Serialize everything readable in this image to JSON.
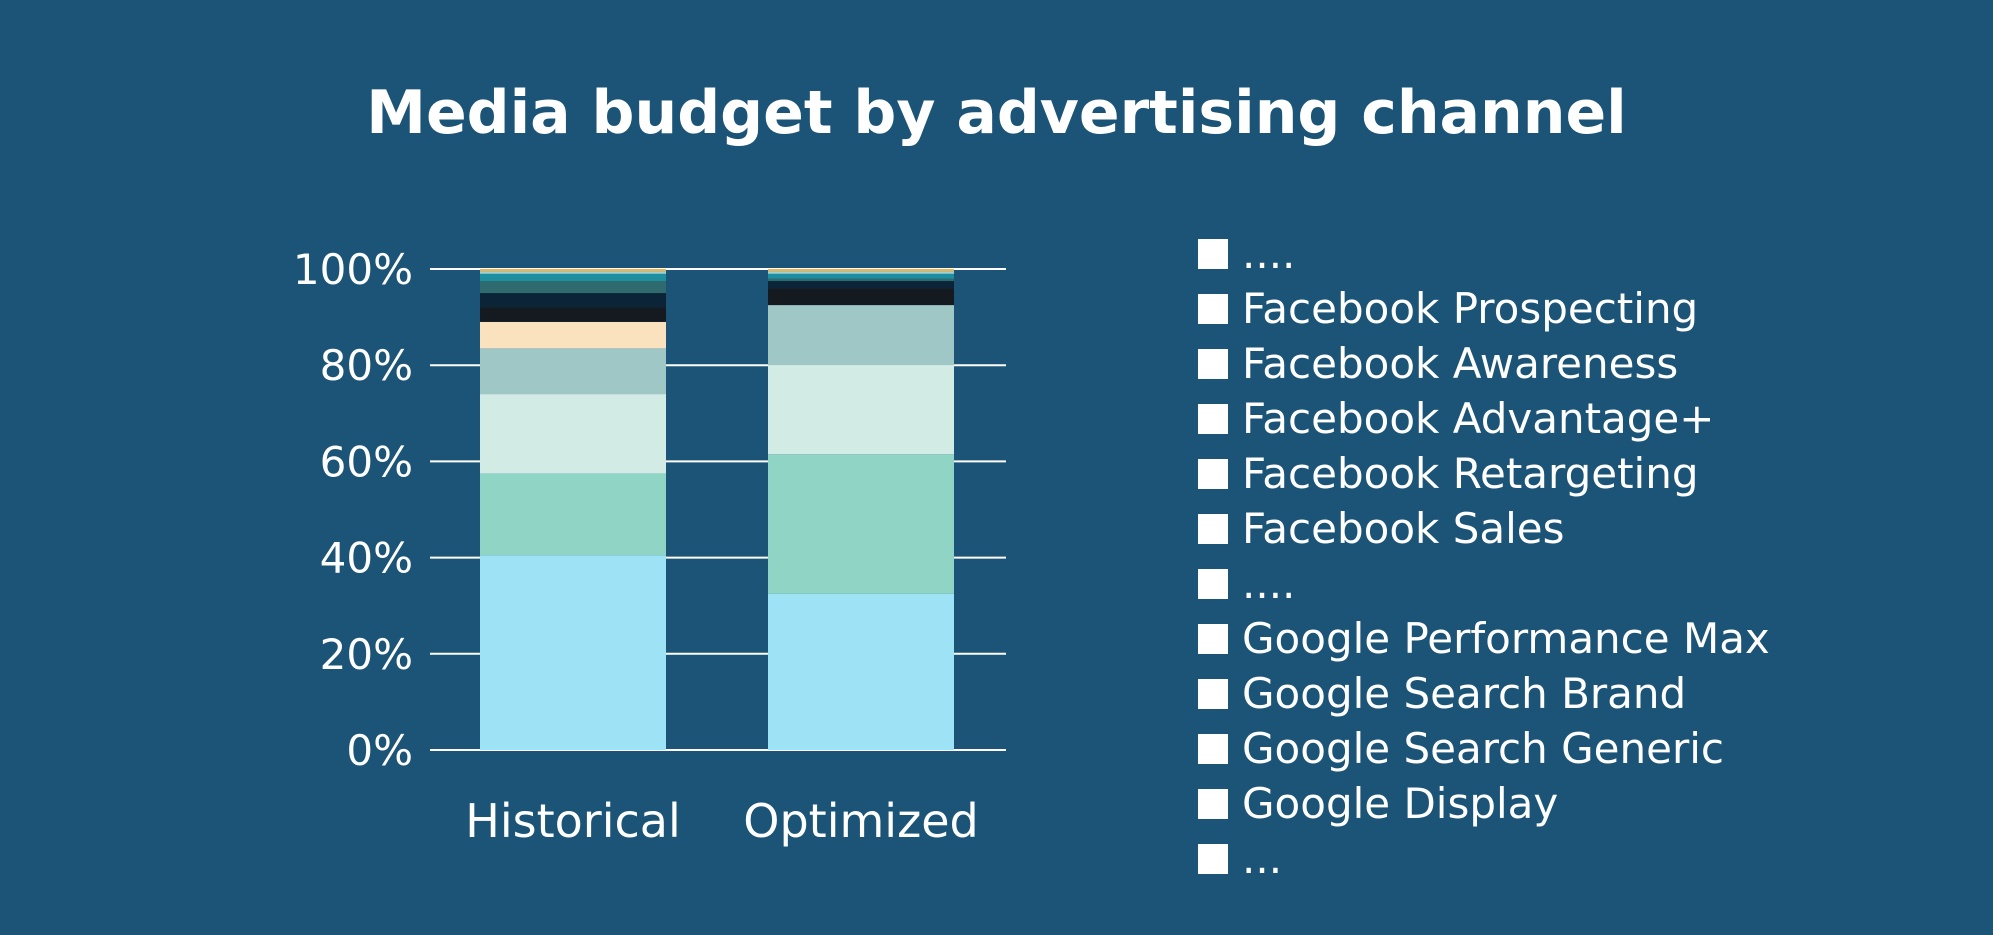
{
  "chart_data": {
    "type": "bar",
    "stacked": true,
    "title": "Media budget by advertising channel",
    "xlabel": "",
    "ylabel": "",
    "ylim": [
      0,
      100
    ],
    "y_ticks": [
      "0%",
      "20%",
      "40%",
      "60%",
      "80%",
      "100%"
    ],
    "grid": true,
    "legend_position": "right",
    "categories": [
      "Historical",
      "Optimized"
    ],
    "series": [
      {
        "color": "#9ee3f5",
        "values": [
          40.5,
          32.5
        ]
      },
      {
        "color": "#8fd4c5",
        "values": [
          17,
          29
        ]
      },
      {
        "color": "#d2ece5",
        "values": [
          16.5,
          18.5
        ]
      },
      {
        "color": "#9fc7c6",
        "values": [
          9.5,
          12.5
        ]
      },
      {
        "color": "#fbe2bf",
        "values": [
          5.5,
          0
        ]
      },
      {
        "color": "#141a1f",
        "values": [
          3,
          3.5
        ]
      },
      {
        "color": "#0c2438",
        "values": [
          3,
          1.5
        ]
      },
      {
        "color": "#2f6a6e",
        "values": [
          2.5,
          0.5
        ]
      },
      {
        "color": "#1e8fa0",
        "values": [
          1.5,
          1
        ]
      },
      {
        "color": "#9ed0cf",
        "values": [
          0.5,
          0.5
        ]
      },
      {
        "color": "#e9b75a",
        "values": [
          0.5,
          0.5
        ]
      }
    ],
    "legend_entries": [
      "....",
      "Facebook Prospecting",
      "Facebook Awareness",
      "Facebook Advantage+",
      "Facebook Retargeting",
      "Facebook Sales",
      "....",
      "Google Performance Max",
      "Google Search Brand",
      "Google Search Generic",
      "Google Display",
      "..."
    ],
    "colors": {
      "background": "#1b5476",
      "text": "#ffffff",
      "gridline": "#ffffff",
      "legend_swatch": "#ffffff"
    }
  }
}
